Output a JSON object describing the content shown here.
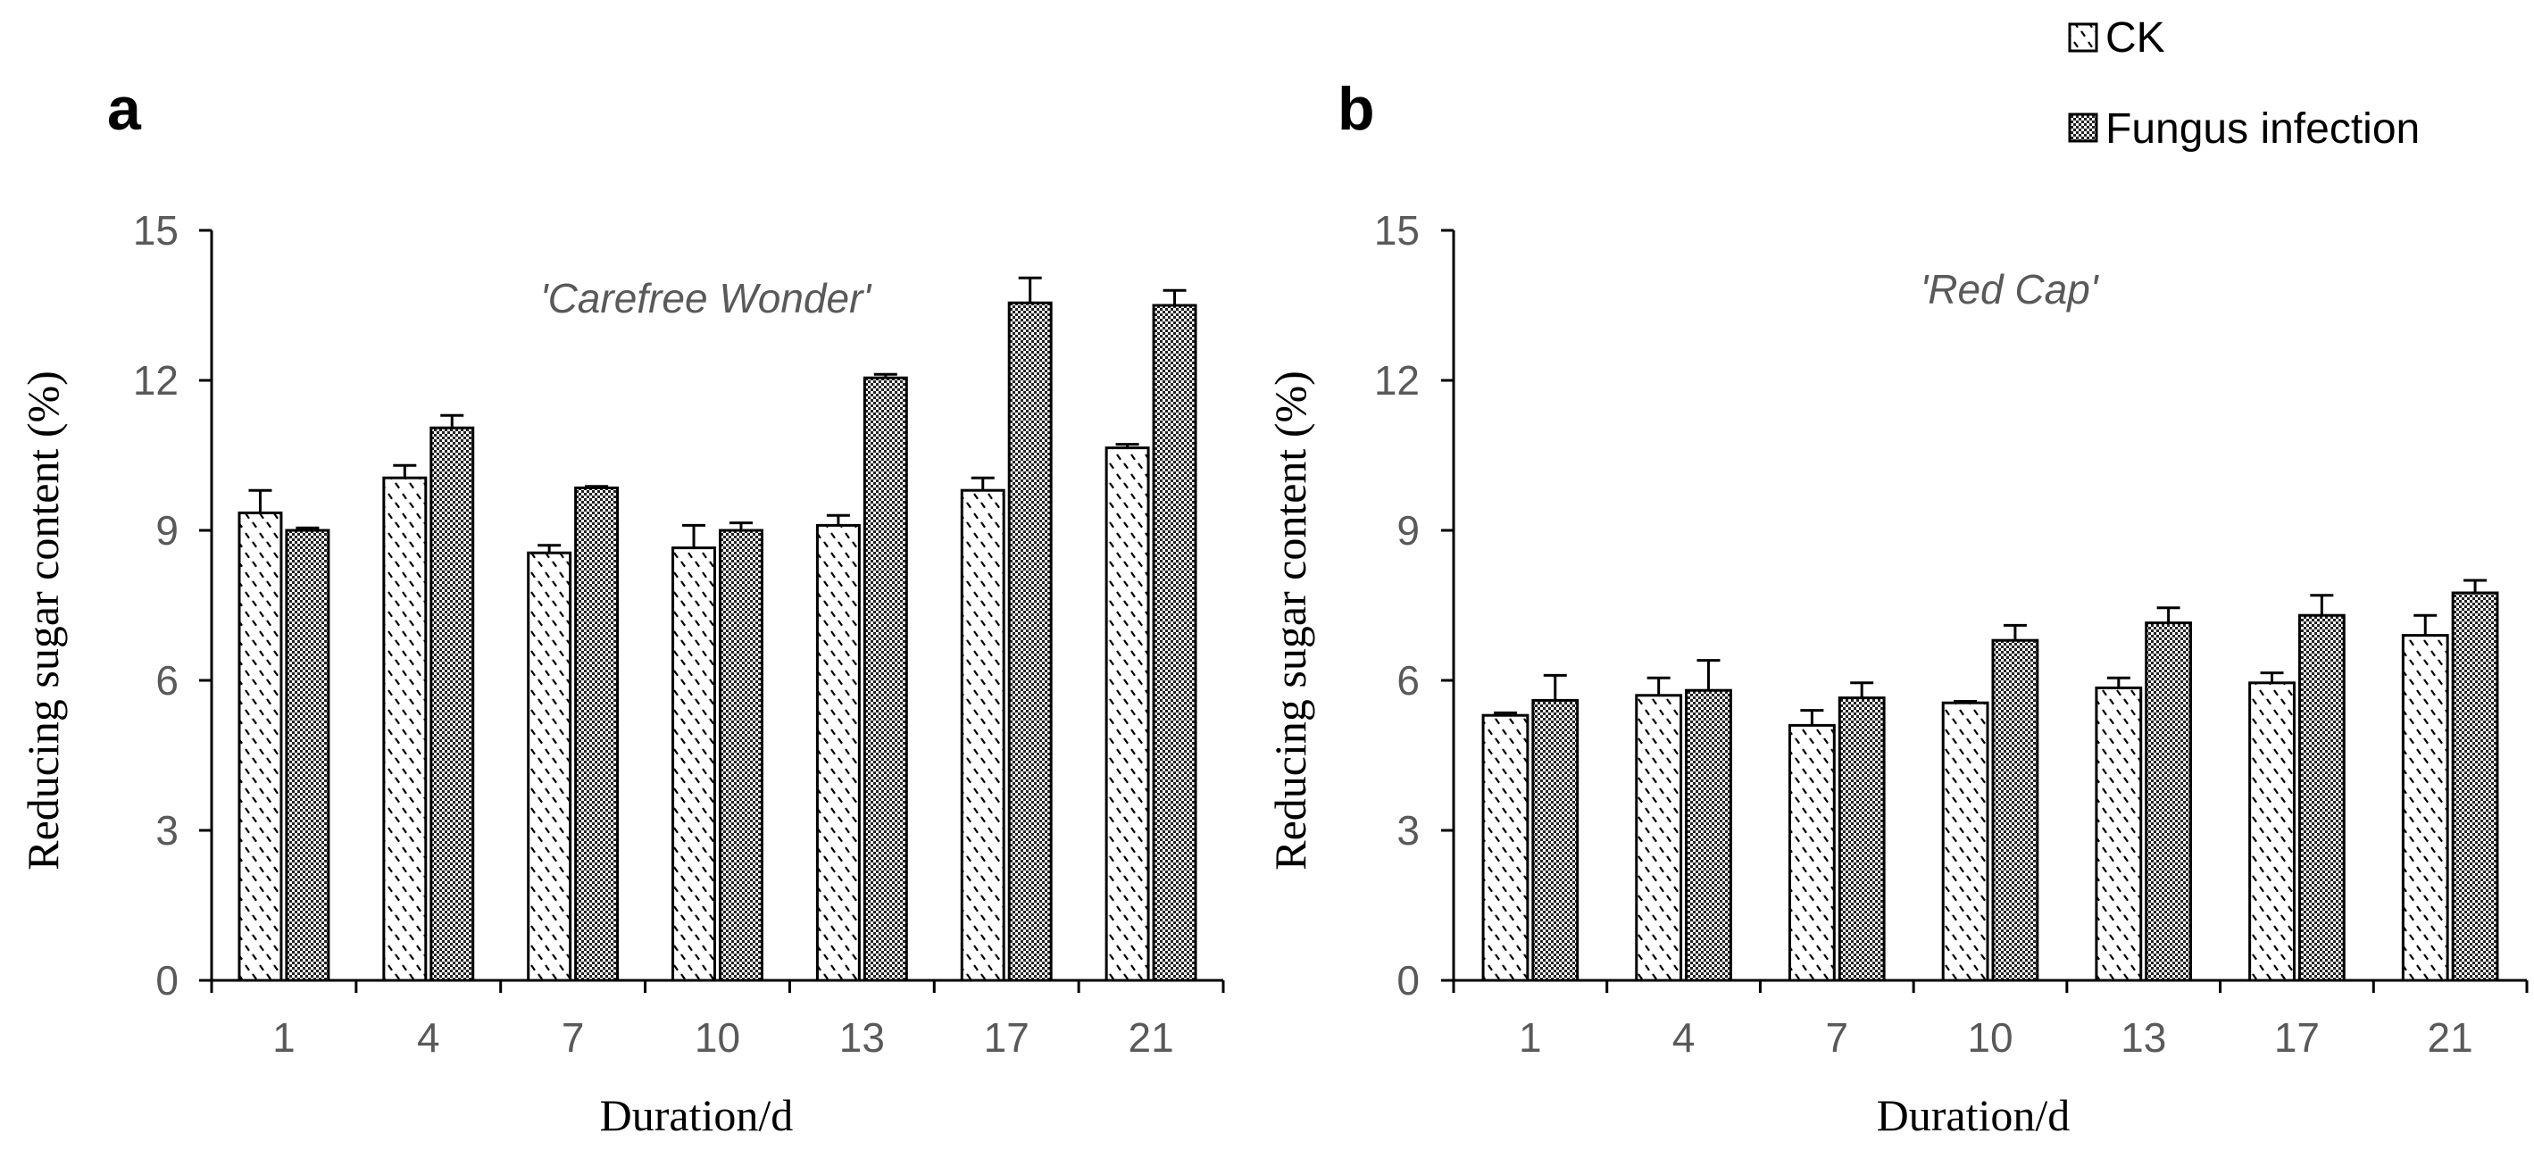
{
  "chart_data": [
    {
      "type": "bar",
      "panel": "a",
      "title": "'Carefree Wonder'",
      "xlabel": "Duration/d",
      "ylabel": "Reducing sugar content (%)",
      "ylim": [
        0,
        15
      ],
      "yticks": [
        "0",
        "3",
        "6",
        "9",
        "12",
        "15"
      ],
      "categories": [
        "1",
        "4",
        "7",
        "10",
        "13",
        "17",
        "21"
      ],
      "series": [
        {
          "name": "CK",
          "values": [
            9.35,
            10.05,
            8.55,
            8.65,
            9.1,
            9.8,
            10.65
          ],
          "errors": [
            0.45,
            0.25,
            0.15,
            0.45,
            0.2,
            0.25,
            0.07
          ]
        },
        {
          "name": "Fungus infection",
          "values": [
            9.0,
            11.05,
            9.85,
            9.0,
            12.05,
            13.55,
            13.5
          ],
          "errors": [
            0.05,
            0.25,
            0.03,
            0.15,
            0.07,
            0.5,
            0.3
          ]
        }
      ]
    },
    {
      "type": "bar",
      "panel": "b",
      "title": "'Red Cap'",
      "xlabel": "Duration/d",
      "ylabel": "Reducing sugar content (%)",
      "ylim": [
        0,
        15
      ],
      "yticks": [
        "0",
        "3",
        "6",
        "9",
        "12",
        "15"
      ],
      "categories": [
        "1",
        "4",
        "7",
        "10",
        "13",
        "17",
        "21"
      ],
      "series": [
        {
          "name": "CK",
          "values": [
            5.3,
            5.7,
            5.1,
            5.55,
            5.85,
            5.95,
            6.9
          ],
          "errors": [
            0.05,
            0.35,
            0.3,
            0.03,
            0.2,
            0.2,
            0.4
          ]
        },
        {
          "name": "Fungus infection",
          "values": [
            5.6,
            5.8,
            5.65,
            6.8,
            7.15,
            7.3,
            7.75
          ],
          "errors": [
            0.5,
            0.6,
            0.3,
            0.3,
            0.3,
            0.4,
            0.25
          ]
        }
      ]
    }
  ],
  "legend": {
    "placement": "top-right",
    "items": [
      {
        "label": "CK",
        "pattern": "hatch"
      },
      {
        "label": "Fungus infection",
        "pattern": "checker"
      }
    ]
  },
  "colors": {
    "axis": "#000000",
    "tick_text": "#595959",
    "bar_fill": "#ffffff",
    "bar_stroke": "#000000"
  }
}
